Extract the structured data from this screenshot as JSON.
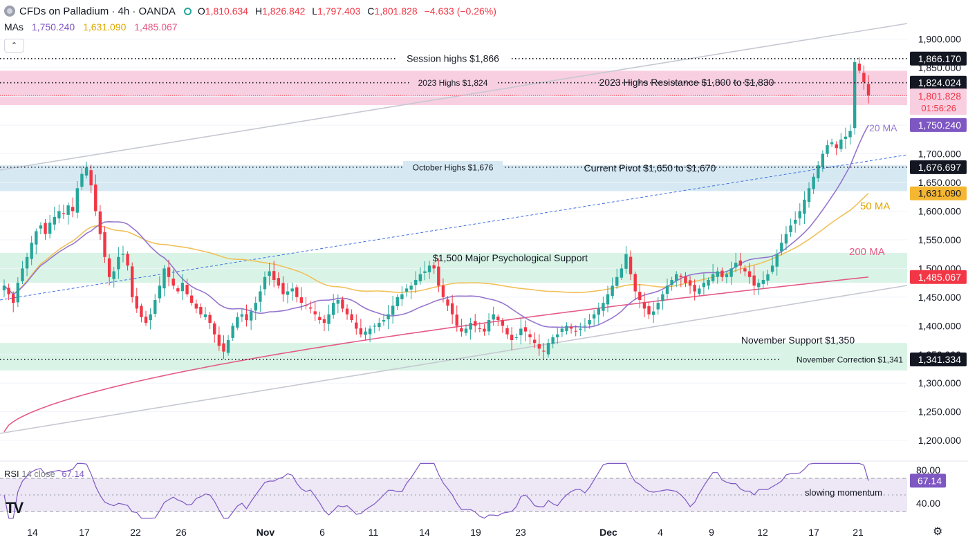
{
  "header": {
    "title": "CFDs on Palladium · 4h · OANDA",
    "o_label": "O",
    "o_value": "1,810.634",
    "h_label": "H",
    "h_value": "1,826.842",
    "l_label": "L",
    "l_value": "1,797.403",
    "c_label": "C",
    "c_value": "1,801.828",
    "change": "−4.633 (−0.26%)"
  },
  "mas": {
    "label": "MAs",
    "ma20": "1,750.240",
    "ma50": "1,631.090",
    "ma200": "1,485.067"
  },
  "colors": {
    "up": "#26a69a",
    "down": "#f23645",
    "ma20": "#9575cd",
    "ma50": "#f0c05a",
    "ma200": "#e45b87",
    "resistance_zone": "#f8cfe0",
    "pivot_zone": "#d6e9f3",
    "support_zone": "#d9f4e6",
    "rsi": "#7e57c2"
  },
  "rsi_header": {
    "label": "RSI",
    "params": "14 close",
    "value": "67.14"
  },
  "icons": {
    "logo": "tradingview-logo-icon",
    "settings": "gear-icon",
    "collapse": "chevron-up-icon"
  },
  "chart_data": {
    "type": "candlestick",
    "symbol": "CFDs on Palladium",
    "interval": "4h",
    "ylim": [
      1170,
      1925
    ],
    "y_ticks": [
      1200,
      1250,
      1300,
      1350,
      1400,
      1450,
      1500,
      1550,
      1600,
      1650,
      1700,
      1750,
      1800,
      1850,
      1900
    ],
    "x_ticks": [
      "14",
      "17",
      "22",
      "26",
      "Nov",
      "6",
      "11",
      "14",
      "19",
      "23",
      "Dec",
      "4",
      "9",
      "12",
      "17",
      "21"
    ],
    "candles_close_path": [
      1470,
      1455,
      1440,
      1475,
      1500,
      1520,
      1545,
      1565,
      1575,
      1560,
      1580,
      1590,
      1600,
      1595,
      1610,
      1600,
      1640,
      1665,
      1676,
      1645,
      1600,
      1560,
      1520,
      1485,
      1495,
      1520,
      1525,
      1505,
      1450,
      1430,
      1415,
      1405,
      1420,
      1445,
      1470,
      1500,
      1485,
      1470,
      1460,
      1475,
      1455,
      1440,
      1430,
      1420,
      1420,
      1405,
      1385,
      1365,
      1355,
      1375,
      1400,
      1415,
      1420,
      1410,
      1425,
      1440,
      1460,
      1485,
      1495,
      1480,
      1470,
      1455,
      1460,
      1465,
      1450,
      1440,
      1435,
      1430,
      1420,
      1410,
      1405,
      1420,
      1440,
      1445,
      1430,
      1420,
      1410,
      1395,
      1385,
      1390,
      1395,
      1400,
      1405,
      1410,
      1420,
      1435,
      1450,
      1455,
      1465,
      1470,
      1480,
      1490,
      1495,
      1505,
      1500,
      1470,
      1450,
      1435,
      1420,
      1400,
      1390,
      1395,
      1405,
      1400,
      1395,
      1390,
      1410,
      1420,
      1410,
      1400,
      1385,
      1375,
      1380,
      1395,
      1390,
      1380,
      1370,
      1360,
      1355,
      1370,
      1380,
      1385,
      1395,
      1400,
      1395,
      1390,
      1395,
      1400,
      1410,
      1420,
      1430,
      1440,
      1455,
      1470,
      1485,
      1500,
      1525,
      1490,
      1460,
      1445,
      1430,
      1420,
      1425,
      1440,
      1455,
      1470,
      1480,
      1490,
      1485,
      1475,
      1470,
      1460,
      1465,
      1475,
      1480,
      1490,
      1495,
      1485,
      1490,
      1500,
      1510,
      1505,
      1495,
      1485,
      1470,
      1475,
      1480,
      1490,
      1505,
      1525,
      1545,
      1560,
      1575,
      1585,
      1600,
      1620,
      1640,
      1660,
      1680,
      1700,
      1715,
      1720,
      1710,
      1725,
      1730,
      1740,
      1860,
      1845,
      1825,
      1802
    ],
    "series": [
      {
        "name": "20 MA",
        "last_value": 1750.24
      },
      {
        "name": "50 MA",
        "last_value": 1631.09
      },
      {
        "name": "200 MA",
        "last_value": 1485.067
      }
    ],
    "horizontal_levels": [
      {
        "label": "Session highs $1,866",
        "value": 1866.17,
        "price_label": "1,866.170"
      },
      {
        "label": "2023 Highs $1,824",
        "value": 1824.024,
        "price_label": "1,824.024"
      },
      {
        "label": "October Highs $1,676",
        "value": 1676.697,
        "price_label": "1,676.697"
      },
      {
        "label": "November Correction $1,341",
        "value": 1341.334,
        "price_label": "1,341.334"
      }
    ],
    "zones": [
      {
        "label": "2023 Highs Resistance $1,800 to $1,830",
        "from": 1785,
        "to": 1845
      },
      {
        "label": "Current Pivot $1,650 to $1,670",
        "from": 1635,
        "to": 1680
      },
      {
        "label": "$1,500 Major Psychological Support",
        "from": 1475,
        "to": 1527
      },
      {
        "label": "November Support $1,350",
        "from": 1322,
        "to": 1370
      }
    ],
    "price_labels": {
      "last_price": "1,801.828",
      "countdown": "01:56:26",
      "ma20": "1,750.240",
      "ma50": "1,631.090",
      "ma200": "1,485.067"
    },
    "rsi": {
      "ylim": [
        20,
        90
      ],
      "ticks": [
        "80.00",
        "40.00"
      ],
      "upper": 70,
      "lower": 30,
      "mid": 50,
      "annotation": "slowing momentum",
      "last_value": 67.14
    }
  }
}
